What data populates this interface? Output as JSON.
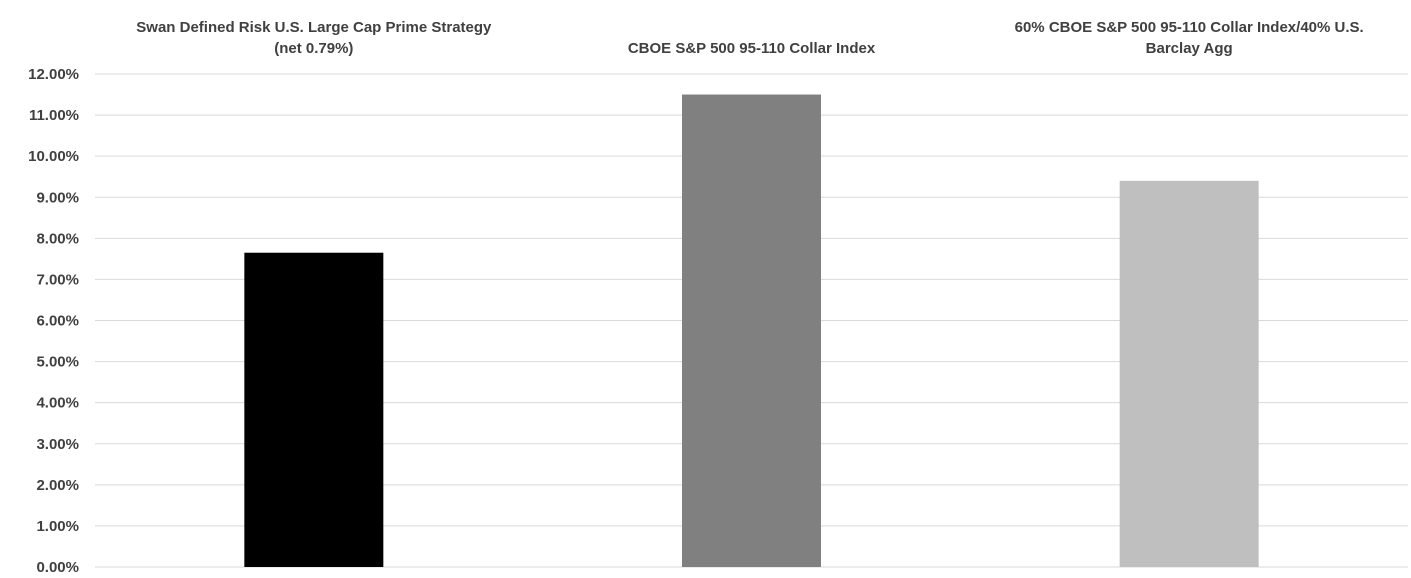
{
  "chart_data": {
    "type": "bar",
    "categories": [
      [
        "Swan Defined Risk U.S. Large Cap Prime Strategy",
        "(net 0.79%)"
      ],
      [
        "CBOE S&P 500 95-110 Collar Index"
      ],
      [
        "60% CBOE S&P 500 95-110 Collar Index/40% U.S.",
        "Barclay Agg"
      ]
    ],
    "values": [
      7.65,
      11.5,
      9.4
    ],
    "colors": [
      "#000000",
      "#808080",
      "#bfbfbf"
    ],
    "ylim": [
      0,
      12
    ],
    "yticks": [
      0,
      1,
      2,
      3,
      4,
      5,
      6,
      7,
      8,
      9,
      10,
      11,
      12
    ],
    "ytick_labels": [
      "0.00%",
      "1.00%",
      "2.00%",
      "3.00%",
      "4.00%",
      "5.00%",
      "6.00%",
      "7.00%",
      "8.00%",
      "9.00%",
      "10.00%",
      "11.00%",
      "12.00%"
    ],
    "category_labels_position": "top",
    "grid": true,
    "title": "",
    "xlabel": "",
    "ylabel": ""
  }
}
